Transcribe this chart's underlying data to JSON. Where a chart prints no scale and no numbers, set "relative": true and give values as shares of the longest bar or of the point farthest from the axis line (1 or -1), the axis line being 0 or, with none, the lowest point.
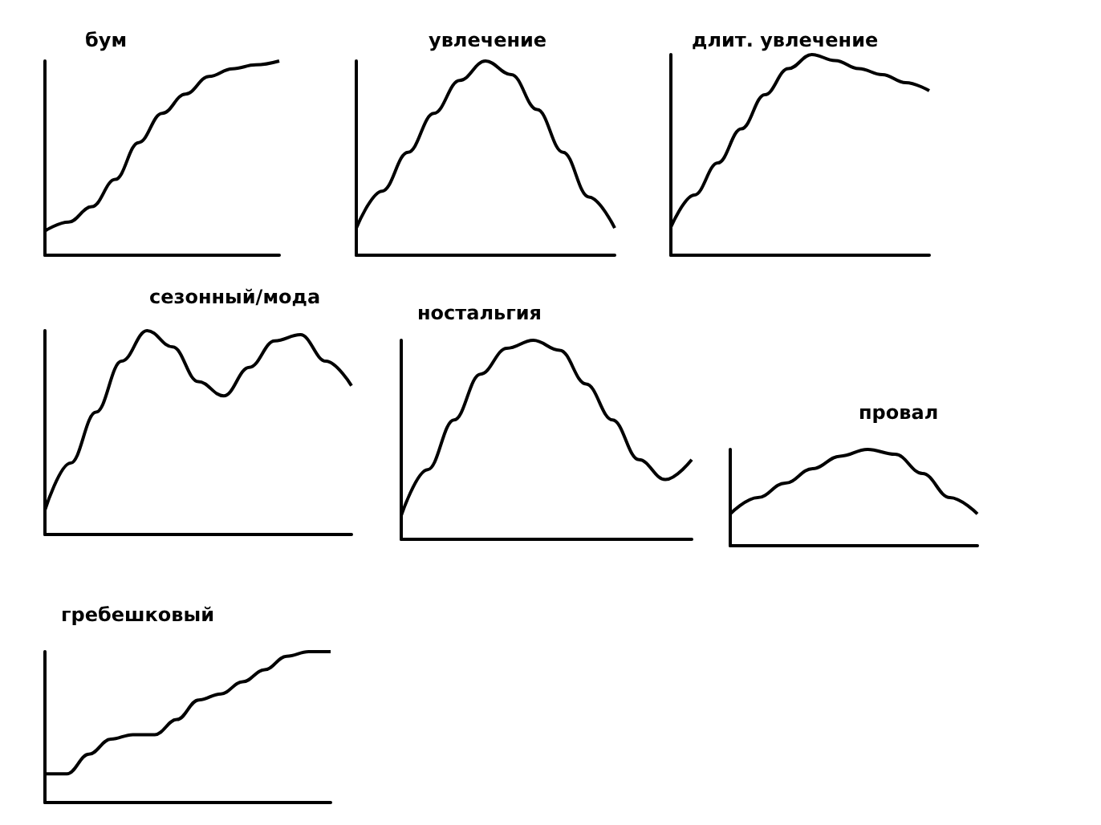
{
  "chart_data": [
    {
      "type": "line",
      "title": "бум",
      "categories": [
        null,
        null,
        null,
        null,
        null,
        null,
        null,
        null,
        null,
        null,
        null
      ],
      "values": [
        0.125,
        0.17,
        0.25,
        0.39,
        0.58,
        0.73,
        0.83,
        0.92,
        0.96,
        0.98,
        1
      ],
      "color": "#000000",
      "relative": true
    },
    {
      "type": "line",
      "title": "увлечение",
      "categories": [
        null,
        null,
        null,
        null,
        null,
        null,
        null,
        null,
        null,
        null,
        null
      ],
      "values": [
        0.14,
        0.33,
        0.53,
        0.73,
        0.9,
        1,
        0.93,
        0.75,
        0.53,
        0.3,
        0.14
      ],
      "color": "#000000",
      "relative": true
    },
    {
      "type": "line",
      "title": "длит. увлечение",
      "categories": [
        null,
        null,
        null,
        null,
        null,
        null,
        null,
        null,
        null,
        null,
        null,
        null
      ],
      "values": [
        0.14,
        0.3,
        0.46,
        0.63,
        0.8,
        0.93,
        1,
        0.97,
        0.93,
        0.9,
        0.86,
        0.82
      ],
      "color": "#000000",
      "relative": true
    },
    {
      "type": "line",
      "title": "сезонный/мода",
      "categories": [
        null,
        null,
        null,
        null,
        null,
        null,
        null,
        null,
        null,
        null,
        null,
        null,
        null
      ],
      "values": [
        0.12,
        0.35,
        0.6,
        0.85,
        1,
        0.92,
        0.75,
        0.68,
        0.82,
        0.95,
        0.98,
        0.85,
        0.73
      ],
      "color": "#000000",
      "relative": true
    },
    {
      "type": "line",
      "title": "ностальгия",
      "categories": [
        null,
        null,
        null,
        null,
        null,
        null,
        null,
        null,
        null,
        null,
        null,
        null
      ],
      "values": [
        0.12,
        0.35,
        0.6,
        0.83,
        0.96,
        1,
        0.95,
        0.78,
        0.6,
        0.4,
        0.3,
        0.4
      ],
      "color": "#000000",
      "relative": true
    },
    {
      "type": "line",
      "title": "провал",
      "categories": [
        null,
        null,
        null,
        null,
        null,
        null,
        null,
        null,
        null,
        null
      ],
      "values": [
        0.33,
        0.5,
        0.65,
        0.8,
        0.93,
        1,
        0.95,
        0.75,
        0.5,
        0.33
      ],
      "color": "#000000",
      "relative": true
    },
    {
      "type": "line",
      "title": "гребешковый",
      "categories": [
        null,
        null,
        null,
        null,
        null,
        null,
        null,
        null,
        null,
        null,
        null,
        null,
        null,
        null
      ],
      "values": [
        0.19,
        0.19,
        0.32,
        0.42,
        0.45,
        0.45,
        0.55,
        0.68,
        0.72,
        0.8,
        0.88,
        0.97,
        1,
        1
      ],
      "color": "#000000",
      "relative": true
    }
  ]
}
